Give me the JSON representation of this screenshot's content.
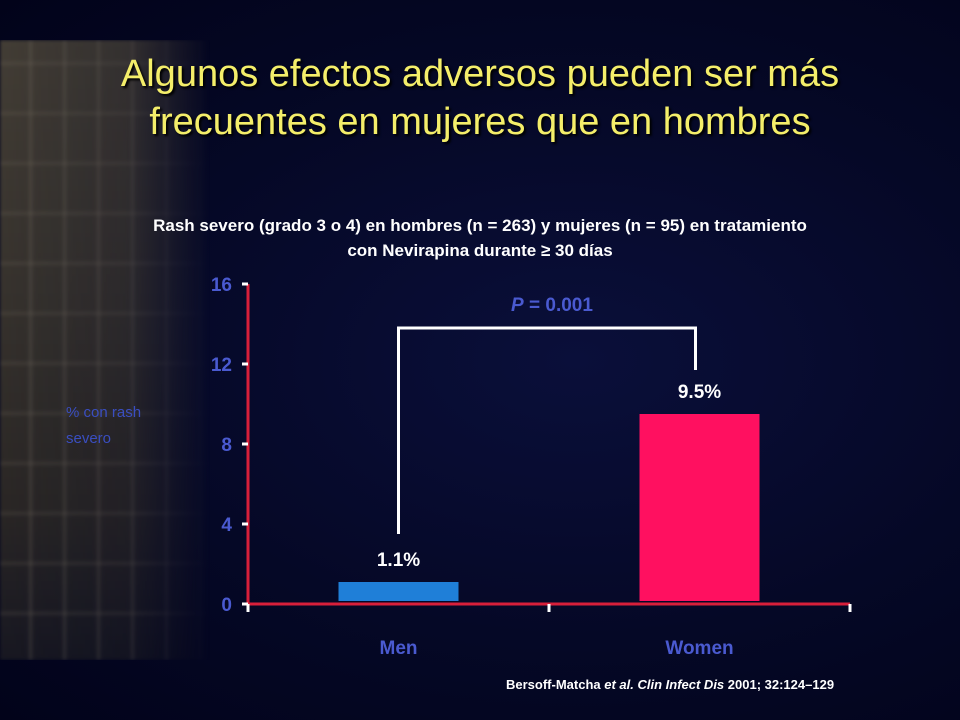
{
  "slide": {
    "title_line1": "Algunos efectos adversos pueden ser más",
    "title_line2": "frecuentes en mujeres que en hombres",
    "subtitle_line1": "Rash severo (grado 3 o 4) en hombres (n = 263) y mujeres (n = 95) en tratamiento",
    "subtitle_line2": "con Nevirapina durante  ≥ 30 días",
    "ylabel_line1": "% con rash",
    "ylabel_line2": "severo",
    "citation_authors": "Bersoff-Matcha ",
    "citation_etal": "et al. Clin Infect Dis",
    "citation_rest": " 2001; 32:124–129"
  },
  "colors": {
    "axis": "#d81f3a",
    "bracket": "#ffffff",
    "men_bar": "#1f7fd8",
    "women_bar": "#ff1060"
  },
  "chart_data": {
    "type": "bar",
    "categories": [
      "Men",
      "Women"
    ],
    "values": [
      1.1,
      9.5
    ],
    "data_labels": [
      "1.1%",
      "9.5%"
    ],
    "bar_colors": [
      "#1f7fd8",
      "#ff1060"
    ],
    "yticks": [
      "0",
      "4",
      "8",
      "12",
      "16"
    ],
    "ylim": [
      0,
      16
    ],
    "ylabel": "% con rash severo",
    "xlabel": "",
    "annotation": "P = 0.001",
    "grid": false,
    "legend": "none"
  }
}
